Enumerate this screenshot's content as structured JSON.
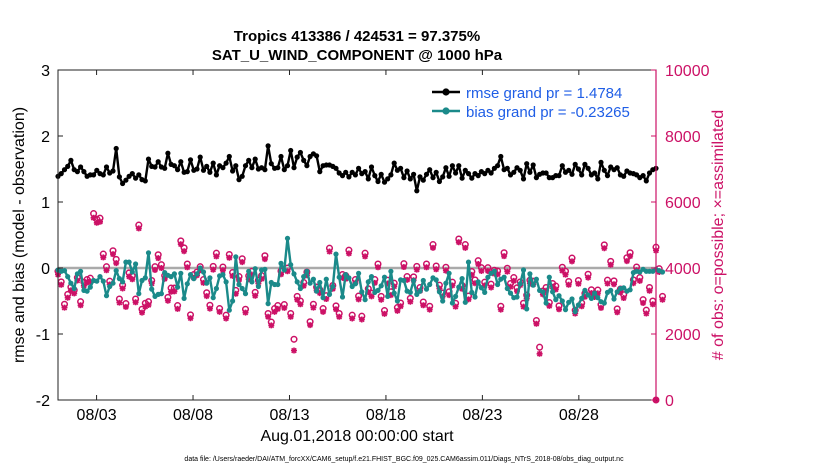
{
  "chart_data": {
    "type": "line",
    "title": [
      "Tropics 413386 / 424531 = 97.375%",
      "SAT_U_WIND_COMPONENT @ 1000 hPa"
    ],
    "xlabel": "Aug.01,2018 00:00:00 start",
    "ylabel": "rmse and bias (model - observation)",
    "ylabel_right": "# of obs: o=possible; ×=assimilated",
    "footnote": "data file: /Users/raeder/DAI/ATM_forcXX/CAM6_setup/f.e21.FHIST_BGC.f09_025.CAM6assim.011/Diags_NTrS_2018-08/obs_diag_output.nc",
    "x_range": [
      1,
      32
    ],
    "x_tick_values": [
      3,
      8,
      13,
      18,
      23,
      28
    ],
    "x_tick_labels": [
      "08/03",
      "08/08",
      "08/13",
      "08/18",
      "08/23",
      "08/28"
    ],
    "ylim": [
      -2,
      3
    ],
    "y_tick_values": [
      -2,
      -1,
      0,
      1,
      2,
      3
    ],
    "y_tick_labels": [
      "-2",
      "-1",
      "0",
      "1",
      "2",
      "3"
    ],
    "ylim_right": [
      0,
      10000
    ],
    "y_right_tick_values": [
      0,
      2000,
      4000,
      6000,
      8000,
      10000
    ],
    "y_right_tick_labels": [
      "0",
      "2000",
      "4000",
      "6000",
      "8000",
      "10000"
    ],
    "zero_line": 0,
    "legend_position": "top-right",
    "colors": {
      "rmse": "#000000",
      "bias": "#1b8a8a",
      "obs": "#cc1166",
      "zero": "#aaaaaa",
      "legend_text": "#1f5ee6",
      "right_axis": "#cc1166"
    },
    "series": [
      {
        "name": "rmse grand pr = 1.4784",
        "axis": "left",
        "values": [
          1.39,
          1.43,
          1.49,
          1.54,
          1.63,
          1.49,
          1.46,
          1.53,
          1.46,
          1.39,
          1.41,
          1.41,
          1.48,
          1.43,
          1.41,
          1.53,
          1.44,
          1.47,
          1.81,
          1.38,
          1.28,
          1.33,
          1.39,
          1.43,
          1.36,
          1.41,
          1.34,
          1.32,
          1.65,
          1.54,
          1.53,
          1.61,
          1.53,
          1.51,
          1.74,
          1.57,
          1.55,
          1.49,
          1.61,
          1.45,
          1.46,
          1.64,
          1.48,
          1.5,
          1.68,
          1.48,
          1.54,
          1.45,
          1.59,
          1.41,
          1.55,
          1.52,
          1.59,
          1.69,
          1.47,
          1.55,
          1.34,
          1.39,
          1.55,
          1.63,
          1.52,
          1.65,
          1.5,
          1.52,
          1.49,
          1.85,
          1.58,
          1.51,
          1.52,
          1.69,
          1.49,
          1.55,
          1.78,
          1.52,
          1.68,
          1.75,
          1.63,
          1.55,
          1.69,
          1.73,
          1.7,
          1.46,
          1.55,
          1.56,
          1.56,
          1.54,
          1.51,
          1.44,
          1.4,
          1.45,
          1.38,
          1.45,
          1.41,
          1.51,
          1.43,
          1.46,
          1.35,
          1.53,
          1.4,
          1.31,
          1.42,
          1.3,
          1.35,
          1.41,
          1.59,
          1.48,
          1.51,
          1.37,
          1.47,
          1.35,
          1.42,
          1.17,
          1.38,
          1.33,
          1.42,
          1.49,
          1.37,
          1.45,
          1.31,
          1.38,
          1.52,
          1.39,
          1.55,
          1.44,
          1.55,
          1.36,
          1.48,
          1.43,
          1.36,
          1.43,
          1.4,
          1.46,
          1.43,
          1.48,
          1.44,
          1.51,
          1.55,
          1.69,
          1.49,
          1.51,
          1.41,
          1.45,
          1.52,
          1.48,
          1.35,
          1.58,
          1.45,
          1.56,
          1.37,
          1.42,
          1.44,
          1.44,
          1.37,
          1.37,
          1.4,
          1.4,
          1.55,
          1.45,
          1.48,
          1.42,
          1.57,
          1.5,
          1.41,
          1.57,
          1.51,
          1.41,
          1.44,
          1.35,
          1.6,
          1.48,
          1.4,
          1.53,
          1.49,
          1.52,
          1.41,
          1.39,
          1.47,
          1.44,
          1.43,
          1.41,
          1.37,
          1.4,
          1.32,
          1.44,
          1.49,
          1.51
        ]
      },
      {
        "name": "bias grand pr = -0.23265",
        "axis": "left",
        "values": [
          -0.03,
          -0.05,
          -0.04,
          -0.13,
          -0.23,
          -0.31,
          -0.09,
          -0.05,
          -0.34,
          -0.35,
          -0.29,
          -0.19,
          -0.2,
          -0.13,
          -0.2,
          -0.42,
          -0.28,
          -0.23,
          -0.04,
          -0.16,
          -0.21,
          0.09,
          0.09,
          -0.06,
          0.06,
          -0.39,
          -0.19,
          -0.15,
          0.23,
          -0.32,
          -0.43,
          -0.4,
          -0.39,
          -0.07,
          -0.11,
          -0.13,
          -0.09,
          -0.29,
          -0.08,
          -0.46,
          -0.24,
          -0.1,
          -0.16,
          -0.09,
          0.0,
          -0.06,
          -0.23,
          -0.15,
          -0.45,
          -0.31,
          -0.12,
          -0.1,
          -0.21,
          -0.64,
          -0.5,
          0.17,
          -0.25,
          -0.31,
          -0.39,
          -0.05,
          -0.21,
          -0.01,
          -0.28,
          -0.03,
          -0.02,
          -0.54,
          -0.22,
          -0.25,
          -0.25,
          0.07,
          -0.03,
          0.45,
          0.05,
          -0.09,
          -0.21,
          -0.31,
          -0.13,
          -0.05,
          -0.23,
          -0.17,
          -0.35,
          -0.22,
          -0.45,
          -0.17,
          -0.4,
          -0.28,
          0.21,
          -0.14,
          -0.44,
          -0.1,
          -0.15,
          -0.28,
          -0.24,
          -0.08,
          -0.36,
          -0.48,
          -0.21,
          -0.13,
          -0.37,
          -0.34,
          -0.27,
          -0.14,
          -0.43,
          -0.05,
          -0.38,
          -0.5,
          -0.18,
          -0.19,
          -0.35,
          -0.37,
          -0.19,
          -0.4,
          -0.35,
          -0.19,
          -0.32,
          -0.25,
          -0.15,
          -0.18,
          -0.36,
          -0.5,
          -0.23,
          -0.08,
          -0.53,
          -0.43,
          -0.29,
          -0.16,
          -0.52,
          0.09,
          -0.37,
          -0.44,
          -0.21,
          -0.3,
          -0.37,
          -0.14,
          -0.08,
          -0.05,
          -0.25,
          -0.17,
          -0.14,
          -0.31,
          -0.38,
          -0.45,
          -0.44,
          -0.24,
          -0.03,
          -0.62,
          -0.09,
          -0.26,
          -0.17,
          -0.34,
          -0.36,
          -0.53,
          -0.14,
          -0.36,
          -0.48,
          -0.42,
          -0.5,
          -0.63,
          -0.52,
          -0.47,
          -0.66,
          -0.56,
          -0.46,
          -0.34,
          -0.41,
          -0.46,
          -0.38,
          -0.45,
          -0.51,
          -0.53,
          -0.37,
          -0.34,
          -0.47,
          -0.36,
          -0.31,
          -0.3,
          -0.35,
          -0.33,
          -0.07,
          -0.05,
          -0.06,
          -0.02,
          -0.05,
          -0.05,
          -0.05,
          -0.02,
          -0.04,
          -0.06
        ]
      },
      {
        "name": "obs possible",
        "axis": "right",
        "marker": "o",
        "values": [
          3900,
          3580,
          2900,
          3200,
          3420,
          3330,
          3710,
          2980,
          3570,
          3650,
          3690,
          5650,
          5480,
          5510,
          4420,
          4040,
          3600,
          4520,
          4260,
          3060,
          3480,
          2920,
          3850,
          3760,
          3060,
          5300,
          2750,
          2930,
          2980,
          3620,
          4040,
          4400,
          4100,
          3770,
          3110,
          3390,
          3390,
          2860,
          4820,
          4610,
          4120,
          2580,
          3800,
          3880,
          4040,
          3650,
          3250,
          2870,
          4050,
          4450,
          2770,
          4030,
          2570,
          4410,
          3860,
          3320,
          3740,
          4280,
          2750,
          3760,
          3900,
          3260,
          3630,
          3770,
          4370,
          2620,
          2360,
          2770,
          2860,
          3910,
          2890,
          4000,
          2620,
          1840,
          3140,
          3000,
          3560,
          3880,
          2370,
          2900,
          3420,
          3340,
          2770,
          3160,
          4600,
          3470,
          2850,
          2620,
          3800,
          3770,
          4540,
          2570,
          3650,
          3150,
          2540,
          4450,
          3370,
          3240,
          3650,
          4120,
          3140,
          2710,
          3630,
          3280,
          3540,
          2800,
          2940,
          4130,
          3740,
          3080,
          3730,
          4050,
          3410,
          2970,
          4120,
          2840,
          4710,
          4060,
          3480,
          3240,
          4020,
          3280,
          3570,
          2930,
          4880,
          3470,
          4710,
          3150,
          3890,
          3640,
          4220,
          4010,
          3570,
          4010,
          3510,
          3930,
          3910,
          2840,
          4460,
          3990,
          3530,
          3710,
          3400,
          3580,
          2930,
          3180,
          3630,
          3600,
          2410,
          1600,
          3300,
          3410,
          2950,
          3530,
          3450,
          2850,
          4020,
          3900,
          3590,
          4300,
          2720,
          3620,
          2940,
          3230,
          3810,
          3340,
          3220,
          3330,
          2890,
          4700,
          3630,
          4200,
          3610,
          2760,
          3360,
          3190,
          4310,
          4460,
          3640,
          4030,
          3710,
          3040,
          2720,
          3410,
          3000,
          4630,
          3980,
          3140
        ]
      },
      {
        "name": "obs assimilated",
        "axis": "right",
        "marker": "x",
        "values": [
          3800,
          3490,
          2800,
          3100,
          3320,
          3230,
          3620,
          2870,
          3460,
          3560,
          3590,
          5520,
          5370,
          5400,
          4320,
          3930,
          3500,
          4420,
          4150,
          2950,
          3380,
          2820,
          3740,
          3660,
          2960,
          5200,
          2650,
          2830,
          2880,
          3530,
          3940,
          4300,
          4000,
          3670,
          3010,
          3280,
          3290,
          2760,
          4720,
          4510,
          4020,
          2480,
          3700,
          3780,
          3940,
          3550,
          3150,
          2770,
          3950,
          4350,
          2670,
          3930,
          2470,
          4310,
          3760,
          3220,
          3640,
          4180,
          2650,
          3660,
          3800,
          3160,
          3530,
          3670,
          4270,
          2520,
          2260,
          2670,
          2760,
          3810,
          2790,
          3900,
          2520,
          1500,
          3040,
          2900,
          3460,
          3780,
          2270,
          2800,
          3320,
          3240,
          2670,
          3060,
          4500,
          3370,
          2750,
          2520,
          3700,
          3670,
          4440,
          2470,
          3550,
          3050,
          2440,
          4350,
          3270,
          3140,
          3550,
          4020,
          3040,
          2610,
          3530,
          3180,
          3440,
          2700,
          2840,
          4030,
          3640,
          2980,
          3630,
          3950,
          3310,
          2870,
          4020,
          2740,
          4610,
          3960,
          3380,
          3140,
          3920,
          3180,
          3470,
          2830,
          4780,
          3370,
          4610,
          3050,
          3790,
          3540,
          4120,
          3910,
          3470,
          3910,
          3410,
          3830,
          3810,
          2740,
          4360,
          3890,
          3430,
          3610,
          3300,
          3480,
          2830,
          3080,
          3530,
          3500,
          2310,
          1400,
          3200,
          3310,
          2850,
          3430,
          3350,
          2750,
          3920,
          3800,
          3490,
          4200,
          2620,
          3520,
          2840,
          3130,
          3710,
          3240,
          3120,
          3230,
          2790,
          4600,
          3530,
          4100,
          3510,
          2660,
          3260,
          3090,
          4210,
          4360,
          3540,
          3930,
          3610,
          2940,
          2620,
          3310,
          2900,
          4530,
          3880,
          3040
        ]
      }
    ]
  }
}
